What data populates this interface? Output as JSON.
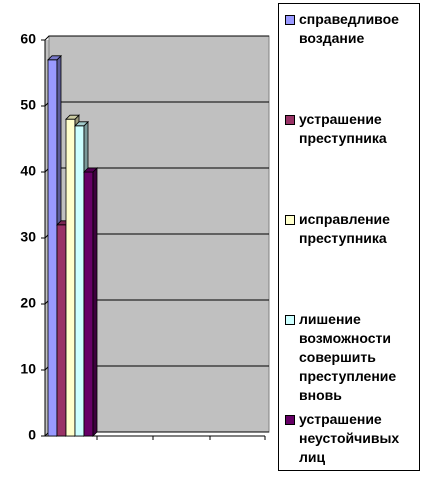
{
  "chart_data": {
    "type": "bar",
    "categories": [
      null
    ],
    "series": [
      {
        "name": "справедливое воздание",
        "color": "#9999ff",
        "values": [
          57
        ]
      },
      {
        "name": "устрашение преступника",
        "color": "#993366",
        "values": [
          32
        ]
      },
      {
        "name": "исправление преступника",
        "color": "#ffffcc",
        "values": [
          48
        ]
      },
      {
        "name": "лишение возможности совершить преступление вновь",
        "color": "#ccffff",
        "values": [
          47
        ]
      },
      {
        "name": "устрашение неустойчивых лиц",
        "color": "#660066",
        "values": [
          40
        ]
      }
    ],
    "ylim": [
      0,
      60
    ],
    "yticks": [
      0,
      10,
      20,
      30,
      40,
      50,
      60
    ],
    "grid": true,
    "legend": "right"
  }
}
